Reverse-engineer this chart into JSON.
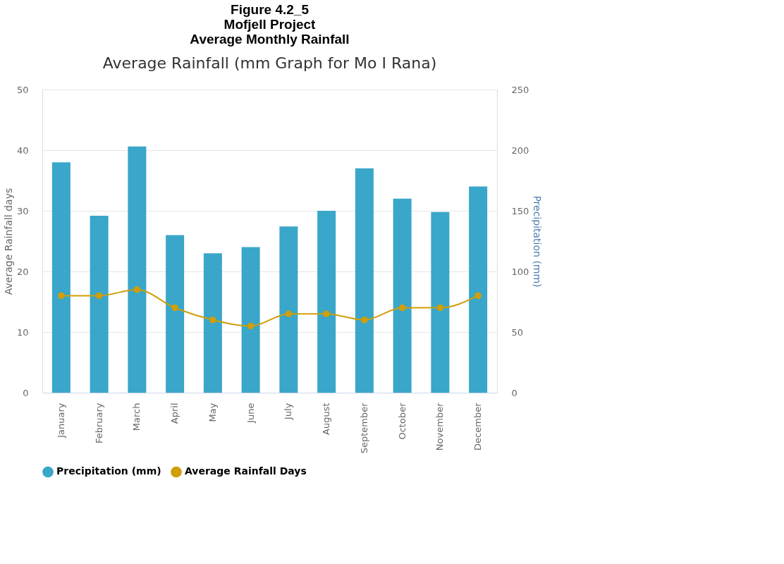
{
  "chart_data": {
    "type": "bar",
    "title": "Figure 4.2_5\nMofjell Project\nAverage Monthly Rainfall",
    "subtitle": "Average Rainfall (mm Graph for Mo I Rana)",
    "categories": [
      "January",
      "February",
      "March",
      "April",
      "May",
      "June",
      "July",
      "August",
      "September",
      "October",
      "November",
      "December"
    ],
    "series": [
      {
        "name": "Precipitation (mm)",
        "axis": "y2",
        "color": "#3aa6c9",
        "values": [
          190,
          146,
          203,
          130,
          115,
          120,
          137,
          150,
          185,
          160,
          149,
          170
        ]
      },
      {
        "name": "Average Rainfall Days",
        "type": "line",
        "axis": "y",
        "color": "#d09e0a",
        "marker": "circle",
        "values": [
          16,
          16,
          17,
          14,
          12,
          11,
          13,
          13,
          12,
          14,
          14,
          16
        ]
      }
    ],
    "ylabel": "Average Rainfall days",
    "y2label": "Precipitation (mm)",
    "ylim": [
      0,
      50
    ],
    "yticks": [
      0,
      10,
      20,
      30,
      40,
      50
    ],
    "y2lim": [
      0,
      250
    ],
    "y2ticks": [
      0,
      50,
      100,
      150,
      200,
      250
    ],
    "grid": "y",
    "legend": "bottom"
  }
}
